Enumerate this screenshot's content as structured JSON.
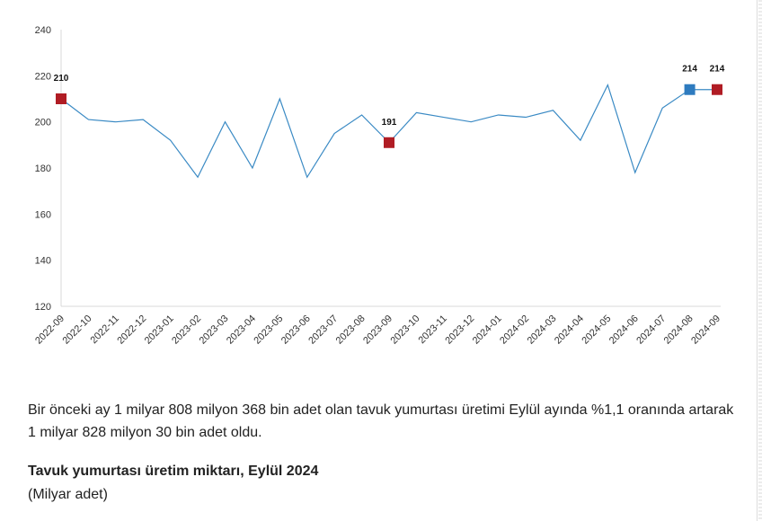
{
  "chart_data": {
    "type": "line",
    "categories": [
      "2022-09",
      "2022-10",
      "2022-11",
      "2022-12",
      "2023-01",
      "2023-02",
      "2023-03",
      "2023-04",
      "2023-05",
      "2023-06",
      "2023-07",
      "2023-08",
      "2023-09",
      "2023-10",
      "2023-11",
      "2023-12",
      "2024-01",
      "2024-02",
      "2024-03",
      "2024-04",
      "2024-05",
      "2024-06",
      "2024-07",
      "2024-08",
      "2024-09"
    ],
    "series": [
      {
        "values": [
          210,
          201,
          200,
          201,
          192,
          176,
          200,
          180,
          210,
          176,
          195,
          203,
          191,
          204,
          202,
          200,
          203,
          202,
          205,
          192,
          216,
          178,
          206,
          214,
          214
        ]
      }
    ],
    "ylim": [
      120,
      240
    ],
    "yticks": [
      120,
      140,
      160,
      180,
      200,
      220,
      240
    ],
    "grid": false,
    "line_color": "#3a8ac4",
    "highlights": [
      {
        "index": 0,
        "label": "210",
        "color": "#b01c24"
      },
      {
        "index": 12,
        "label": "191",
        "color": "#b01c24"
      },
      {
        "index": 23,
        "label": "214",
        "color": "#2e7bbf"
      },
      {
        "index": 24,
        "label": "214",
        "color": "#b01c24"
      }
    ]
  },
  "text": {
    "paragraph": "Bir önceki ay 1 milyar 808 milyon 368 bin adet olan tavuk yumurtası üretimi Eylül ayında %1,1 oranında artarak 1 milyar 828 milyon 30 bin adet oldu.",
    "table_title": "Tavuk yumurtası üretim miktarı, Eylül 2024",
    "table_unit": "(Milyar adet)"
  }
}
